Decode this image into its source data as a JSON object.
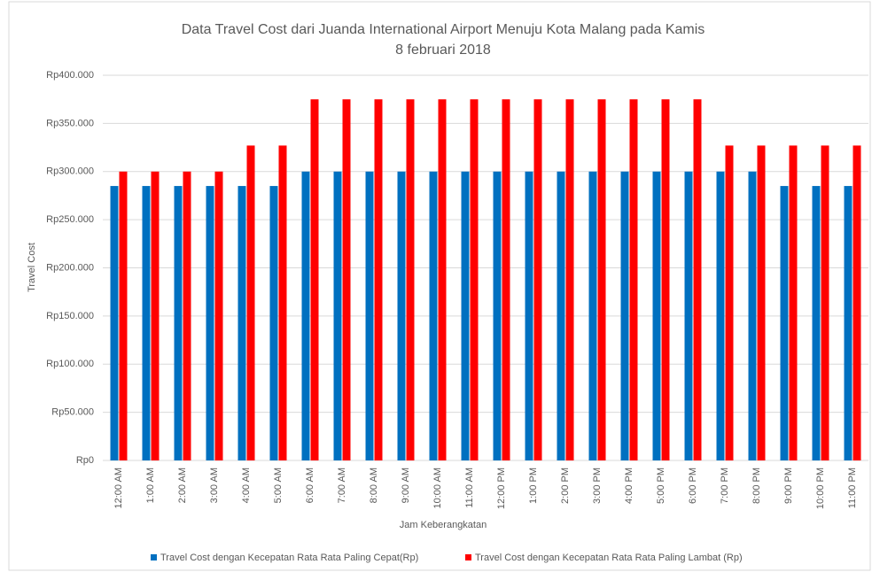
{
  "chart_data": {
    "type": "bar",
    "title": [
      "Data Travel Cost dari Juanda International Airport Menuju Kota Malang  pada Kamis",
      "8 februari 2018"
    ],
    "x_label": "Jam Keberangkatan",
    "y_label": "Travel Cost",
    "categories": [
      "12:00 AM",
      "1:00 AM",
      "2:00 AM",
      "3:00 AM",
      "4:00 AM",
      "5:00 AM",
      "6:00 AM",
      "7:00 AM",
      "8:00 AM",
      "9:00 AM",
      "10:00 AM",
      "11:00 AM",
      "12:00 PM",
      "1:00 PM",
      "2:00 PM",
      "3:00 PM",
      "4:00 PM",
      "5:00 PM",
      "6:00 PM",
      "7:00 PM",
      "8:00 PM",
      "9:00 PM",
      "10:00 PM",
      "11:00 PM"
    ],
    "series": [
      {
        "name": "Travel Cost dengan Kecepatan Rata Rata Paling Cepat(Rp)",
        "color": "#0070c0",
        "values": [
          285000,
          285000,
          285000,
          285000,
          285000,
          285000,
          300000,
          300000,
          300000,
          300000,
          300000,
          300000,
          300000,
          300000,
          300000,
          300000,
          300000,
          300000,
          300000,
          300000,
          300000,
          285000,
          285000,
          285000
        ]
      },
      {
        "name": "Travel Cost dengan Kecepatan Rata Rata Paling Lambat (Rp)",
        "color": "#ff0000",
        "values": [
          300000,
          300000,
          300000,
          300000,
          327000,
          327000,
          375000,
          375000,
          375000,
          375000,
          375000,
          375000,
          375000,
          375000,
          375000,
          375000,
          375000,
          375000,
          375000,
          327000,
          327000,
          327000,
          327000,
          327000
        ]
      }
    ],
    "ylim": [
      0,
      400000
    ],
    "yticks": [
      {
        "value": 0,
        "label": "Rp0"
      },
      {
        "value": 50000,
        "label": "Rp50.000"
      },
      {
        "value": 100000,
        "label": "Rp100.000"
      },
      {
        "value": 150000,
        "label": "Rp150.000"
      },
      {
        "value": 200000,
        "label": "Rp200.000"
      },
      {
        "value": 250000,
        "label": "Rp250.000"
      },
      {
        "value": 300000,
        "label": "Rp300.000"
      },
      {
        "value": 350000,
        "label": "Rp350.000"
      },
      {
        "value": 400000,
        "label": "Rp400.000"
      }
    ],
    "grid": true,
    "legend": "bottom"
  }
}
